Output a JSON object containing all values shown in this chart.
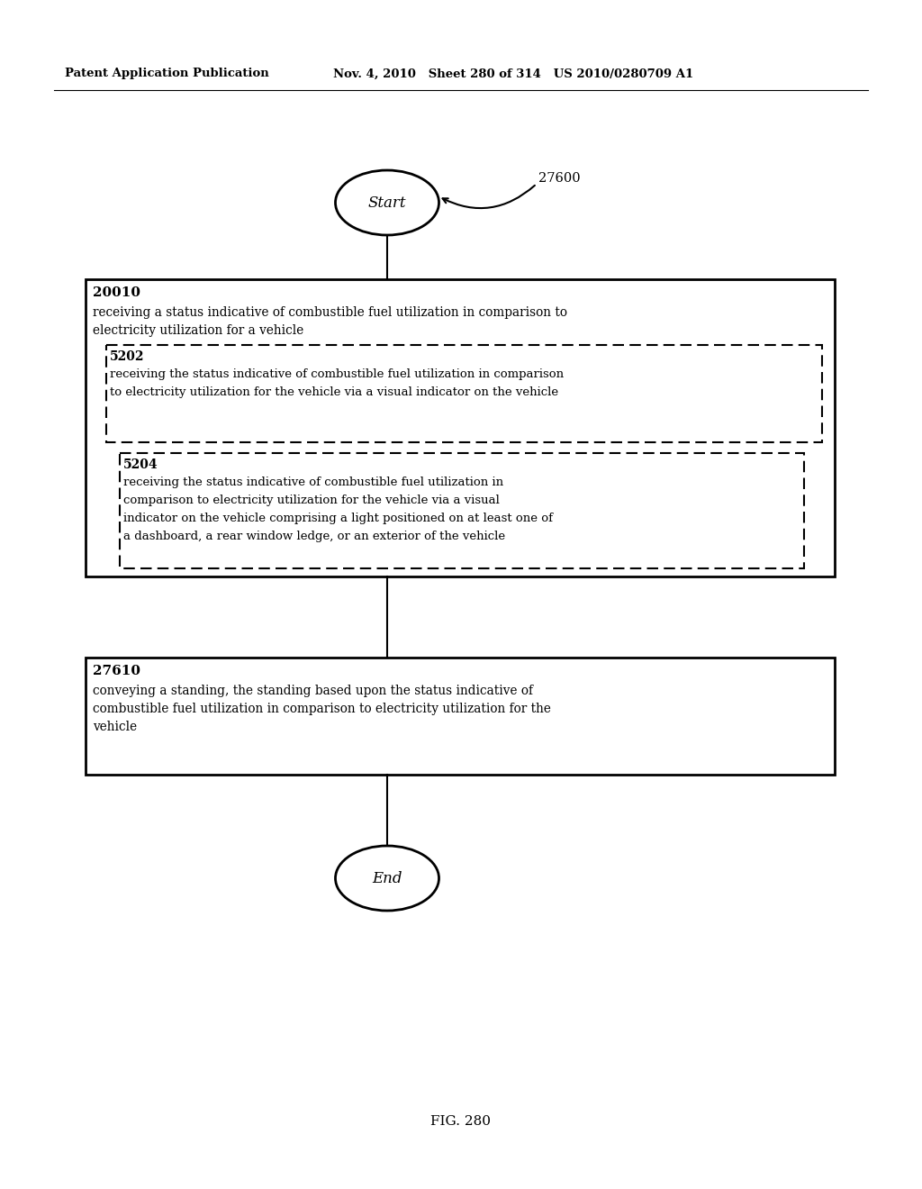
{
  "header_left": "Patent Application Publication",
  "header_right": "Nov. 4, 2010   Sheet 280 of 314   US 2010/0280709 A1",
  "figure_label": "FIG. 280",
  "flow_label": "27600",
  "start_text": "Start",
  "end_text": "End",
  "box1_id": "20010",
  "box1_line1": "receiving a status indicative of combustible fuel utilization in comparison to",
  "box1_line2": "electricity utilization for a vehicle",
  "box2_id": "5202",
  "box2_line1": "receiving the status indicative of combustible fuel utilization in comparison",
  "box2_line2": "to electricity utilization for the vehicle via a visual indicator on the vehicle",
  "box3_id": "5204",
  "box3_line1": "receiving the status indicative of combustible fuel utilization in",
  "box3_line2": "comparison to electricity utilization for the vehicle via a visual",
  "box3_line3": "indicator on the vehicle comprising a light positioned on at least one of",
  "box3_line4": "a dashboard, a rear window ledge, or an exterior of the vehicle",
  "box4_id": "27610",
  "box4_line1": "conveying a standing, the standing based upon the status indicative of",
  "box4_line2": "combustible fuel utilization in comparison to electricity utilization for the",
  "box4_line3": "vehicle",
  "bg_color": "#ffffff",
  "text_color": "#000000"
}
